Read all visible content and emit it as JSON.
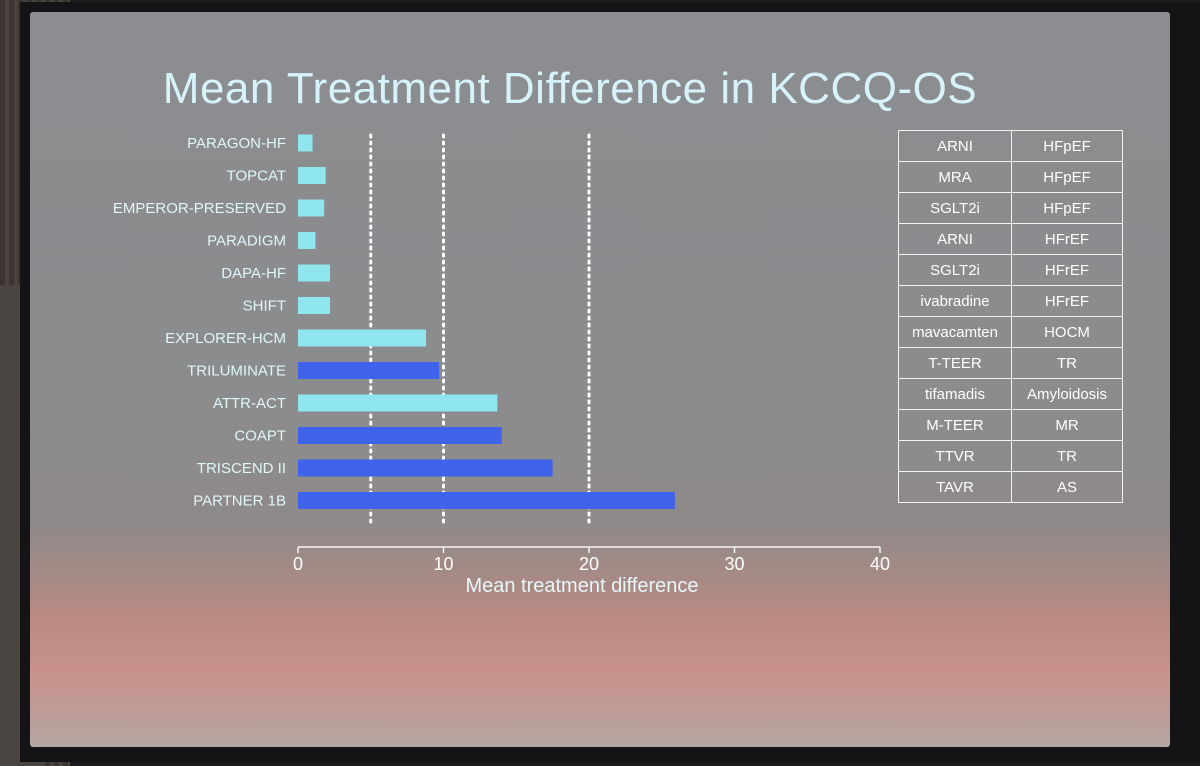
{
  "slide": {
    "title": "Mean Treatment Difference in KCCQ-OS"
  },
  "chart_data": {
    "type": "bar",
    "orientation": "horizontal",
    "title": "Mean Treatment Difference in KCCQ-OS",
    "xlabel": "Mean treatment difference",
    "ylabel": "",
    "xlim": [
      0,
      40
    ],
    "xticks": [
      0,
      10,
      20,
      30,
      40
    ],
    "reference_lines": [
      5,
      10,
      20
    ],
    "categories": [
      "PARAGON-HF",
      "TOPCAT",
      "EMPEROR-PRESERVED",
      "PARADIGM",
      "DAPA-HF",
      "SHIFT",
      "EXPLORER-HCM",
      "TRILUMINATE",
      "ATTR-ACT",
      "COAPT",
      "TRISCEND II",
      "PARTNER 1B"
    ],
    "values": [
      1.0,
      1.9,
      1.8,
      1.2,
      2.2,
      2.2,
      8.8,
      9.7,
      13.7,
      14.0,
      17.5,
      25.9
    ],
    "bar_colors": [
      "#8fe6ee",
      "#8fe6ee",
      "#8fe6ee",
      "#8fe6ee",
      "#8fe6ee",
      "#8fe6ee",
      "#8fe6ee",
      "#3f63ea",
      "#8fe6ee",
      "#3f63ea",
      "#3f63ea",
      "#3f63ea"
    ],
    "colors": {
      "drug": "#8fe6ee",
      "device": "#3f63ea",
      "label": "#dff6fb",
      "axis": "#f4f4f4"
    }
  },
  "reference_table": {
    "rows": [
      {
        "therapy": "ARNI",
        "condition": "HFpEF"
      },
      {
        "therapy": "MRA",
        "condition": "HFpEF"
      },
      {
        "therapy": "SGLT2i",
        "condition": "HFpEF"
      },
      {
        "therapy": "ARNI",
        "condition": "HFrEF"
      },
      {
        "therapy": "SGLT2i",
        "condition": "HFrEF"
      },
      {
        "therapy": "ivabradine",
        "condition": "HFrEF"
      },
      {
        "therapy": "mavacamten",
        "condition": "HOCM"
      },
      {
        "therapy": "T-TEER",
        "condition": "TR"
      },
      {
        "therapy": "tifamadis",
        "condition": "Amyloidosis"
      },
      {
        "therapy": "M-TEER",
        "condition": "MR"
      },
      {
        "therapy": "TTVR",
        "condition": "TR"
      },
      {
        "therapy": "TAVR",
        "condition": "AS"
      }
    ]
  }
}
